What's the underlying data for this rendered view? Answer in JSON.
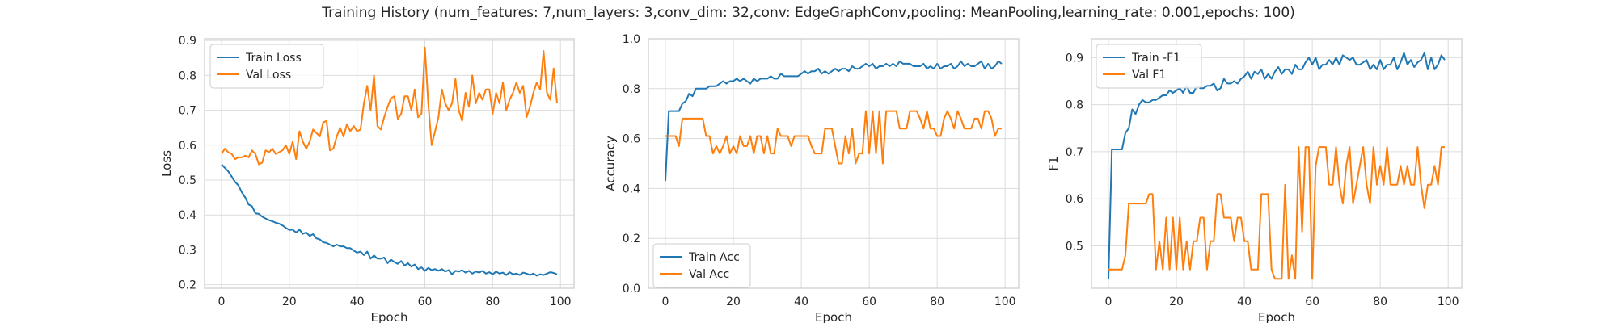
{
  "title": "Training History (num_features: 7,num_layers: 3,conv_dim: 32,conv: EdgeGraphConv,pooling: MeanPooling,learning_rate: 0.001,epochs: 100)",
  "colors": {
    "series_1": "#1f77b4",
    "series_2": "#ff7f0e",
    "grid": "#dcdcdc",
    "spine": "#cccccc"
  },
  "chart_data": [
    {
      "type": "line",
      "xlabel": "Epoch",
      "ylabel": "Loss",
      "xlim": [
        -5,
        104
      ],
      "ylim": [
        0.19,
        0.905
      ],
      "xticks": [
        0,
        20,
        40,
        60,
        80,
        100
      ],
      "yticks": [
        0.2,
        0.3,
        0.4,
        0.5,
        0.6,
        0.7,
        0.8,
        0.9
      ],
      "ytick_labels": [
        "0.2",
        "0.3",
        "0.4",
        "0.5",
        "0.6",
        "0.7",
        "0.8",
        "0.9"
      ],
      "grid": true,
      "legend": "top-left",
      "series": [
        {
          "name": "Train Loss",
          "color": "#1f77b4",
          "values": [
            0.545,
            0.535,
            0.525,
            0.51,
            0.495,
            0.485,
            0.465,
            0.45,
            0.43,
            0.425,
            0.405,
            0.403,
            0.395,
            0.39,
            0.385,
            0.382,
            0.378,
            0.375,
            0.37,
            0.363,
            0.357,
            0.358,
            0.35,
            0.358,
            0.346,
            0.35,
            0.34,
            0.345,
            0.333,
            0.33,
            0.322,
            0.32,
            0.315,
            0.31,
            0.315,
            0.31,
            0.31,
            0.305,
            0.305,
            0.298,
            0.292,
            0.295,
            0.285,
            0.295,
            0.275,
            0.284,
            0.275,
            0.275,
            0.278,
            0.262,
            0.272,
            0.265,
            0.26,
            0.268,
            0.255,
            0.262,
            0.252,
            0.258,
            0.245,
            0.25,
            0.24,
            0.248,
            0.242,
            0.245,
            0.24,
            0.245,
            0.238,
            0.242,
            0.23,
            0.24,
            0.238,
            0.242,
            0.235,
            0.24,
            0.232,
            0.238,
            0.235,
            0.24,
            0.232,
            0.236,
            0.23,
            0.238,
            0.232,
            0.235,
            0.228,
            0.236,
            0.23,
            0.232,
            0.228,
            0.235,
            0.232,
            0.228,
            0.232,
            0.226,
            0.23,
            0.228,
            0.232,
            0.236,
            0.234,
            0.23
          ]
        },
        {
          "name": "Val Loss",
          "color": "#ff7f0e",
          "values": [
            0.575,
            0.59,
            0.58,
            0.575,
            0.56,
            0.565,
            0.565,
            0.57,
            0.565,
            0.585,
            0.575,
            0.545,
            0.55,
            0.585,
            0.58,
            0.59,
            0.575,
            0.58,
            0.585,
            0.6,
            0.575,
            0.61,
            0.56,
            0.64,
            0.61,
            0.59,
            0.61,
            0.645,
            0.635,
            0.625,
            0.665,
            0.67,
            0.585,
            0.59,
            0.625,
            0.65,
            0.625,
            0.66,
            0.64,
            0.655,
            0.64,
            0.645,
            0.72,
            0.77,
            0.7,
            0.8,
            0.655,
            0.645,
            0.68,
            0.71,
            0.735,
            0.74,
            0.675,
            0.69,
            0.74,
            0.74,
            0.7,
            0.76,
            0.68,
            0.69,
            0.88,
            0.72,
            0.6,
            0.64,
            0.68,
            0.76,
            0.72,
            0.7,
            0.72,
            0.79,
            0.7,
            0.67,
            0.75,
            0.71,
            0.8,
            0.72,
            0.75,
            0.73,
            0.76,
            0.76,
            0.69,
            0.75,
            0.72,
            0.78,
            0.7,
            0.73,
            0.75,
            0.78,
            0.75,
            0.77,
            0.68,
            0.71,
            0.75,
            0.78,
            0.76,
            0.87,
            0.75,
            0.73,
            0.82,
            0.72
          ]
        }
      ]
    },
    {
      "type": "line",
      "xlabel": "Epoch",
      "ylabel": "Accuracy",
      "xlim": [
        -5,
        104
      ],
      "ylim": [
        0,
        1
      ],
      "xticks": [
        0,
        20,
        40,
        60,
        80,
        100
      ],
      "yticks": [
        0,
        0.2,
        0.4,
        0.6,
        0.8,
        1.0
      ],
      "ytick_labels": [
        "0.0",
        "0.2",
        "0.4",
        "0.6",
        "0.8",
        "1.0"
      ],
      "grid": true,
      "legend": "bottom-left",
      "series": [
        {
          "name": "Train Acc",
          "color": "#1f77b4",
          "values": [
            0.43,
            0.71,
            0.71,
            0.71,
            0.71,
            0.74,
            0.75,
            0.78,
            0.77,
            0.8,
            0.8,
            0.8,
            0.8,
            0.81,
            0.81,
            0.81,
            0.82,
            0.83,
            0.82,
            0.83,
            0.83,
            0.84,
            0.83,
            0.84,
            0.83,
            0.82,
            0.84,
            0.83,
            0.84,
            0.84,
            0.84,
            0.85,
            0.84,
            0.84,
            0.86,
            0.85,
            0.85,
            0.85,
            0.85,
            0.85,
            0.86,
            0.87,
            0.86,
            0.87,
            0.87,
            0.88,
            0.86,
            0.87,
            0.86,
            0.87,
            0.88,
            0.87,
            0.88,
            0.88,
            0.87,
            0.89,
            0.88,
            0.88,
            0.89,
            0.9,
            0.89,
            0.9,
            0.88,
            0.89,
            0.89,
            0.9,
            0.89,
            0.9,
            0.89,
            0.91,
            0.9,
            0.9,
            0.9,
            0.89,
            0.89,
            0.89,
            0.9,
            0.88,
            0.89,
            0.88,
            0.9,
            0.88,
            0.89,
            0.89,
            0.9,
            0.88,
            0.89,
            0.91,
            0.89,
            0.9,
            0.89,
            0.89,
            0.9,
            0.91,
            0.88,
            0.9,
            0.88,
            0.89,
            0.91,
            0.9
          ]
        },
        {
          "name": "Val Acc",
          "color": "#ff7f0e",
          "values": [
            0.61,
            0.61,
            0.61,
            0.61,
            0.57,
            0.68,
            0.68,
            0.68,
            0.68,
            0.68,
            0.68,
            0.68,
            0.61,
            0.61,
            0.54,
            0.57,
            0.54,
            0.57,
            0.61,
            0.54,
            0.57,
            0.54,
            0.61,
            0.57,
            0.57,
            0.61,
            0.54,
            0.61,
            0.61,
            0.54,
            0.61,
            0.54,
            0.54,
            0.64,
            0.61,
            0.61,
            0.61,
            0.57,
            0.61,
            0.61,
            0.61,
            0.61,
            0.61,
            0.57,
            0.54,
            0.54,
            0.54,
            0.64,
            0.64,
            0.64,
            0.57,
            0.5,
            0.5,
            0.61,
            0.54,
            0.64,
            0.5,
            0.54,
            0.54,
            0.71,
            0.54,
            0.71,
            0.54,
            0.71,
            0.5,
            0.71,
            0.71,
            0.71,
            0.71,
            0.64,
            0.64,
            0.64,
            0.71,
            0.71,
            0.71,
            0.68,
            0.64,
            0.71,
            0.64,
            0.64,
            0.61,
            0.61,
            0.68,
            0.71,
            0.68,
            0.64,
            0.71,
            0.68,
            0.64,
            0.64,
            0.64,
            0.68,
            0.68,
            0.64,
            0.71,
            0.71,
            0.68,
            0.61,
            0.64,
            0.64
          ]
        }
      ]
    },
    {
      "type": "line",
      "xlabel": "Epoch",
      "ylabel": "F1",
      "xlim": [
        -5,
        104
      ],
      "ylim": [
        0.41,
        0.94
      ],
      "xticks": [
        0,
        20,
        40,
        60,
        80,
        100
      ],
      "yticks": [
        0.5,
        0.6,
        0.7,
        0.8,
        0.9
      ],
      "ytick_labels": [
        "0.5",
        "0.6",
        "0.7",
        "0.8",
        "0.9"
      ],
      "grid": true,
      "legend": "top-left",
      "series": [
        {
          "name": "Train -F1",
          "color": "#1f77b4",
          "values": [
            0.43,
            0.705,
            0.705,
            0.705,
            0.705,
            0.74,
            0.75,
            0.79,
            0.78,
            0.8,
            0.81,
            0.805,
            0.805,
            0.81,
            0.81,
            0.815,
            0.82,
            0.82,
            0.83,
            0.825,
            0.83,
            0.835,
            0.825,
            0.84,
            0.825,
            0.825,
            0.84,
            0.835,
            0.835,
            0.84,
            0.84,
            0.845,
            0.83,
            0.835,
            0.855,
            0.845,
            0.845,
            0.85,
            0.845,
            0.855,
            0.86,
            0.87,
            0.855,
            0.87,
            0.865,
            0.875,
            0.855,
            0.865,
            0.855,
            0.87,
            0.88,
            0.865,
            0.875,
            0.875,
            0.865,
            0.885,
            0.875,
            0.875,
            0.89,
            0.9,
            0.885,
            0.9,
            0.875,
            0.885,
            0.885,
            0.895,
            0.885,
            0.9,
            0.885,
            0.905,
            0.9,
            0.895,
            0.9,
            0.885,
            0.885,
            0.89,
            0.895,
            0.875,
            0.885,
            0.875,
            0.895,
            0.875,
            0.885,
            0.885,
            0.9,
            0.875,
            0.89,
            0.91,
            0.885,
            0.895,
            0.88,
            0.89,
            0.895,
            0.91,
            0.875,
            0.9,
            0.875,
            0.885,
            0.905,
            0.895
          ]
        },
        {
          "name": "Val F1",
          "color": "#ff7f0e",
          "values": [
            0.45,
            0.45,
            0.45,
            0.45,
            0.45,
            0.48,
            0.59,
            0.59,
            0.59,
            0.59,
            0.59,
            0.59,
            0.61,
            0.61,
            0.45,
            0.51,
            0.45,
            0.56,
            0.45,
            0.56,
            0.45,
            0.56,
            0.45,
            0.51,
            0.45,
            0.51,
            0.51,
            0.56,
            0.56,
            0.45,
            0.51,
            0.51,
            0.61,
            0.61,
            0.56,
            0.56,
            0.56,
            0.51,
            0.56,
            0.56,
            0.51,
            0.51,
            0.45,
            0.45,
            0.45,
            0.61,
            0.61,
            0.61,
            0.45,
            0.43,
            0.43,
            0.43,
            0.63,
            0.43,
            0.48,
            0.43,
            0.71,
            0.53,
            0.71,
            0.71,
            0.43,
            0.67,
            0.71,
            0.71,
            0.71,
            0.63,
            0.63,
            0.71,
            0.63,
            0.59,
            0.67,
            0.71,
            0.59,
            0.63,
            0.67,
            0.71,
            0.63,
            0.59,
            0.71,
            0.63,
            0.67,
            0.63,
            0.71,
            0.63,
            0.63,
            0.63,
            0.67,
            0.63,
            0.67,
            0.63,
            0.63,
            0.71,
            0.63,
            0.58,
            0.63,
            0.63,
            0.67,
            0.63,
            0.71,
            0.71
          ]
        }
      ]
    }
  ]
}
